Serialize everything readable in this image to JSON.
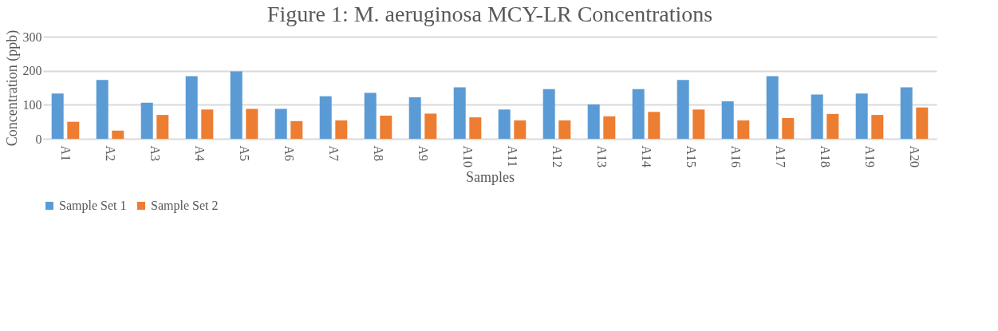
{
  "chart_data": {
    "type": "bar",
    "title": "Figure 1: M. aeruginosa MCY-LR Concentrations",
    "xlabel": "Samples",
    "ylabel": "Concentration (ppb)",
    "categories": [
      "A1",
      "A2",
      "A3",
      "A4",
      "A5",
      "A6",
      "A7",
      "A8",
      "A9",
      "A10",
      "A11",
      "A12",
      "A13",
      "A14",
      "A15",
      "A16",
      "A17",
      "A18",
      "A19",
      "A20"
    ],
    "series": [
      {
        "name": "Sample Set 1",
        "color": "#5b9bd5",
        "values": [
          133,
          173,
          106,
          184,
          198,
          88,
          125,
          135,
          122,
          151,
          86,
          146,
          101,
          146,
          173,
          110,
          184,
          130,
          133,
          151
        ]
      },
      {
        "name": "Sample Set 2",
        "color": "#ed7d31",
        "values": [
          50,
          24,
          70,
          86,
          88,
          52,
          54,
          68,
          74,
          63,
          54,
          54,
          66,
          79,
          86,
          54,
          61,
          73,
          70,
          92
        ]
      }
    ],
    "ylim": [
      0,
      300
    ],
    "yticks": [
      0,
      100,
      200,
      300
    ],
    "grid": "y",
    "legend": "bottom"
  }
}
